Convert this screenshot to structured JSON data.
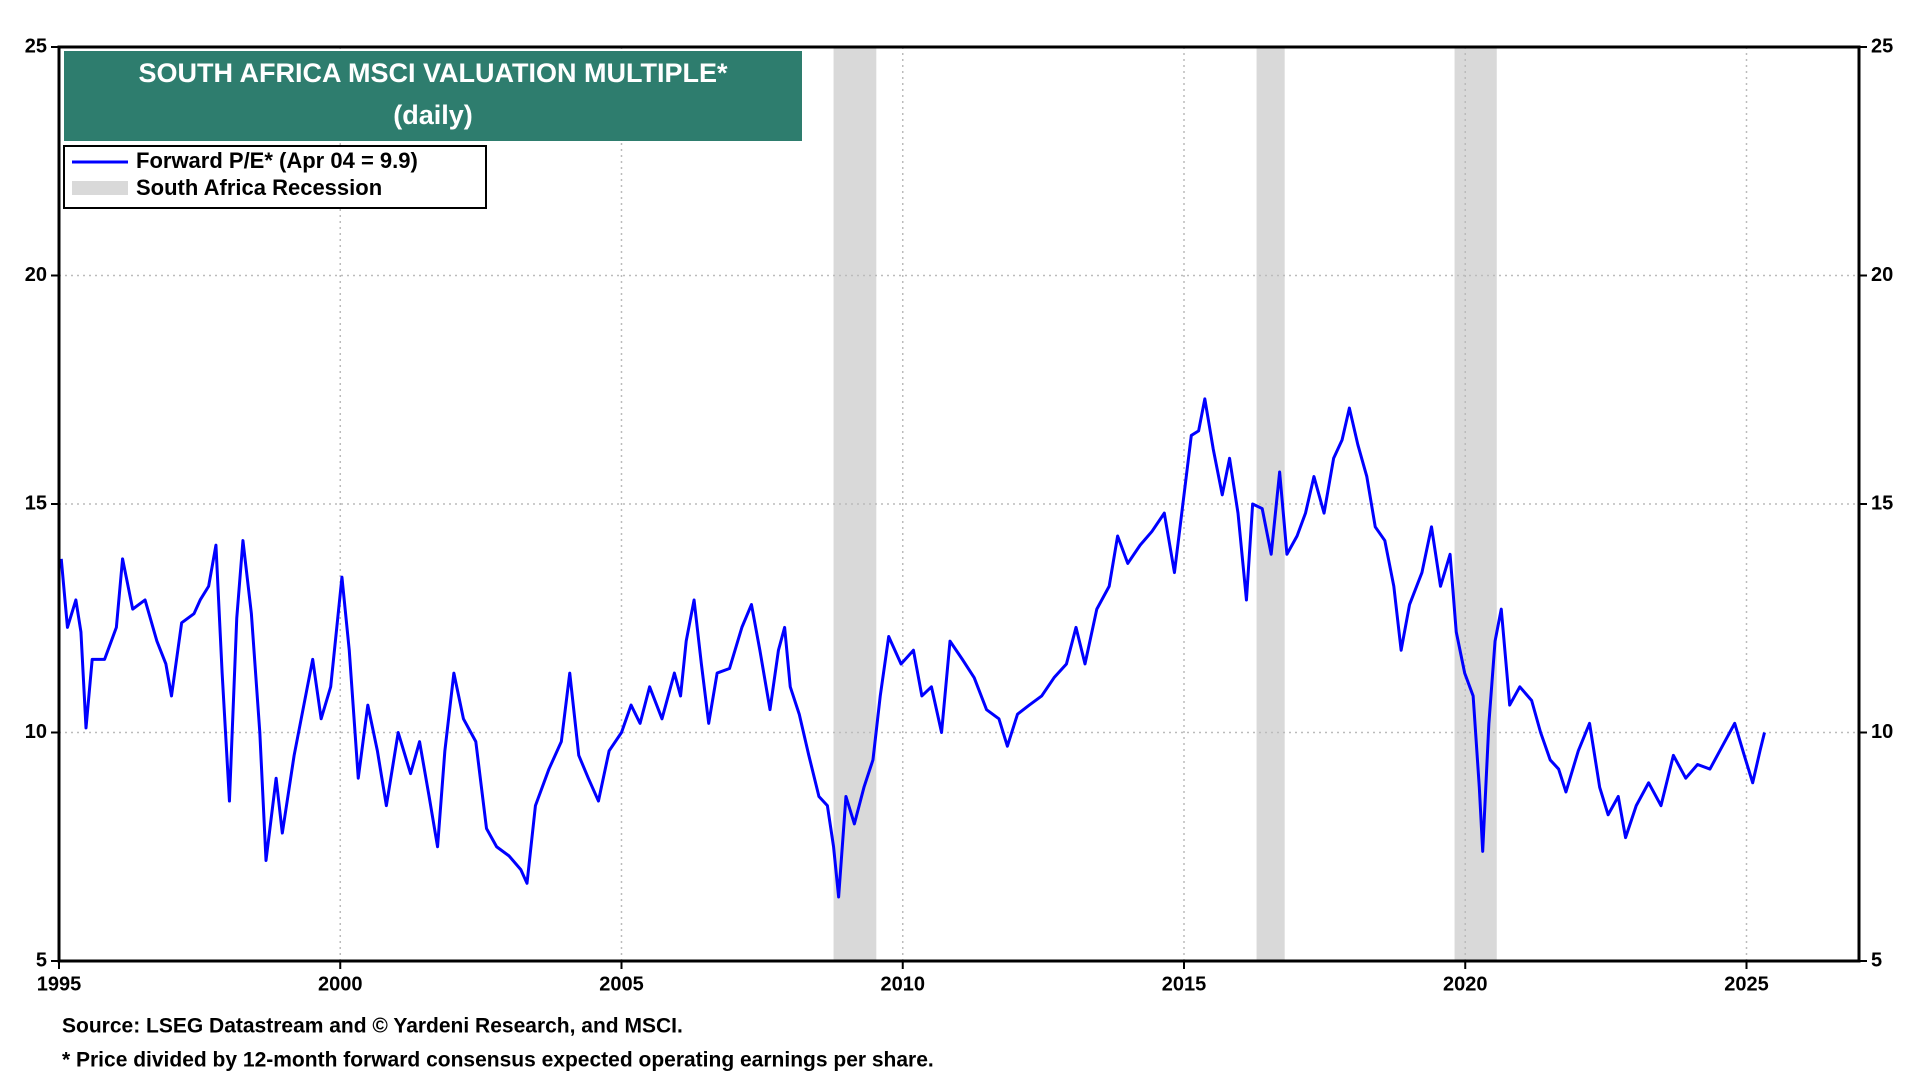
{
  "chart_data": {
    "type": "line",
    "title": "SOUTH AFRICA MSCI VALUATION MULTIPLE*",
    "subtitle": "(daily)",
    "source": "Source: LSEG Datastream and © Yardeni Research, and MSCI.",
    "note": "* Price divided by 12-month forward consensus expected operating earnings per share.",
    "x": [
      1995.04,
      1995.15,
      1995.3,
      1995.39,
      1995.48,
      1995.59,
      1995.81,
      1996.02,
      1996.13,
      1996.31,
      1996.53,
      1996.74,
      1996.9,
      1997.0,
      1997.18,
      1997.4,
      1997.51,
      1997.66,
      1997.79,
      1997.9,
      1998.03,
      1998.16,
      1998.27,
      1998.42,
      1998.57,
      1998.68,
      1998.86,
      1998.97,
      1999.18,
      1999.4,
      1999.51,
      1999.66,
      1999.83,
      2000.03,
      2000.16,
      2000.32,
      2000.49,
      2000.66,
      2000.82,
      2001.03,
      2001.25,
      2001.41,
      2001.58,
      2001.73,
      2001.86,
      2002.02,
      2002.19,
      2002.41,
      2002.6,
      2002.78,
      2003.0,
      2003.21,
      2003.32,
      2003.47,
      2003.71,
      2003.93,
      2004.08,
      2004.24,
      2004.41,
      2004.59,
      2004.78,
      2005.0,
      2005.17,
      2005.33,
      2005.5,
      2005.72,
      2005.94,
      2006.05,
      2006.15,
      2006.29,
      2006.42,
      2006.55,
      2006.7,
      2006.92,
      2007.14,
      2007.31,
      2007.46,
      2007.64,
      2007.79,
      2007.9,
      2008.0,
      2008.16,
      2008.33,
      2008.51,
      2008.66,
      2008.77,
      2008.86,
      2008.99,
      2009.14,
      2009.31,
      2009.47,
      2009.6,
      2009.75,
      2009.97,
      2010.19,
      2010.34,
      2010.51,
      2010.69,
      2010.84,
      2011.06,
      2011.27,
      2011.49,
      2011.71,
      2011.86,
      2012.04,
      2012.25,
      2012.47,
      2012.69,
      2012.91,
      2013.08,
      2013.24,
      2013.45,
      2013.67,
      2013.82,
      2014.0,
      2014.22,
      2014.43,
      2014.65,
      2014.83,
      2014.98,
      2015.13,
      2015.26,
      2015.37,
      2015.52,
      2015.68,
      2015.81,
      2015.96,
      2016.11,
      2016.22,
      2016.39,
      2016.55,
      2016.7,
      2016.83,
      2017.01,
      2017.16,
      2017.31,
      2017.49,
      2017.66,
      2017.81,
      2017.94,
      2018.09,
      2018.25,
      2018.4,
      2018.57,
      2018.73,
      2018.86,
      2019.01,
      2019.23,
      2019.4,
      2019.56,
      2019.73,
      2019.84,
      2019.99,
      2020.14,
      2020.25,
      2020.31,
      2020.42,
      2020.53,
      2020.64,
      2020.79,
      2020.97,
      2021.18,
      2021.34,
      2021.51,
      2021.66,
      2021.79,
      2022.01,
      2022.21,
      2022.39,
      2022.54,
      2022.72,
      2022.85,
      2023.04,
      2023.26,
      2023.48,
      2023.7,
      2023.92,
      2024.13,
      2024.35,
      2024.57,
      2024.79,
      2024.96,
      2025.11,
      2025.24,
      2025.32
    ],
    "series": [
      {
        "name": "Forward P/E* (Apr 04 = 9.9)",
        "color": "#0000ff",
        "values": [
          13.8,
          12.3,
          12.9,
          12.2,
          10.1,
          11.6,
          11.6,
          12.3,
          13.8,
          12.7,
          12.9,
          12.0,
          11.5,
          10.8,
          12.4,
          12.6,
          12.9,
          13.2,
          14.1,
          11.3,
          8.5,
          12.5,
          14.2,
          12.6,
          10.0,
          7.2,
          9.0,
          7.8,
          9.5,
          10.9,
          11.6,
          10.3,
          11.0,
          13.4,
          11.8,
          9.0,
          10.6,
          9.6,
          8.4,
          10.0,
          9.1,
          9.8,
          8.6,
          7.5,
          9.6,
          11.3,
          10.3,
          9.8,
          7.9,
          7.5,
          7.3,
          7.0,
          6.7,
          8.4,
          9.2,
          9.8,
          11.3,
          9.5,
          9.0,
          8.5,
          9.6,
          10.0,
          10.6,
          10.2,
          11.0,
          10.3,
          11.3,
          10.8,
          12.0,
          12.9,
          11.5,
          10.2,
          11.3,
          11.4,
          12.3,
          12.8,
          11.8,
          10.5,
          11.8,
          12.3,
          11.0,
          10.4,
          9.5,
          8.6,
          8.4,
          7.5,
          6.4,
          8.6,
          8.0,
          8.8,
          9.4,
          10.8,
          12.1,
          11.5,
          11.8,
          10.8,
          11.0,
          10.0,
          12.0,
          11.6,
          11.2,
          10.5,
          10.3,
          9.7,
          10.4,
          10.6,
          10.8,
          11.2,
          11.5,
          12.3,
          11.5,
          12.7,
          13.2,
          14.3,
          13.7,
          14.1,
          14.4,
          14.8,
          13.5,
          15.0,
          16.5,
          16.6,
          17.3,
          16.2,
          15.2,
          16.0,
          14.8,
          12.9,
          15.0,
          14.9,
          13.9,
          15.7,
          13.9,
          14.3,
          14.8,
          15.6,
          14.8,
          16.0,
          16.4,
          17.1,
          16.3,
          15.6,
          14.5,
          14.2,
          13.2,
          11.8,
          12.8,
          13.5,
          14.5,
          13.2,
          13.9,
          12.2,
          11.3,
          10.8,
          8.8,
          7.4,
          10.2,
          12.0,
          12.7,
          10.6,
          11.0,
          10.7,
          10.0,
          9.4,
          9.2,
          8.7,
          9.6,
          10.2,
          8.8,
          8.2,
          8.6,
          7.7,
          8.4,
          8.9,
          8.4,
          9.5,
          9.0,
          9.3,
          9.2,
          9.7,
          10.2,
          9.5,
          8.9,
          9.6,
          10.0
        ]
      }
    ],
    "shaded_regions": {
      "name": "South Africa Recession",
      "color": "#d9d9d9",
      "ranges": [
        [
          2008.77,
          2009.53
        ],
        [
          2016.29,
          2016.79
        ],
        [
          2019.81,
          2020.56
        ]
      ]
    },
    "xlim": [
      1995,
      2027
    ],
    "xticks": [
      1995,
      2000,
      2005,
      2010,
      2015,
      2020,
      2025
    ],
    "ylim": [
      5,
      25
    ],
    "yticks": [
      5,
      10,
      15,
      20,
      25
    ],
    "y2lim": [
      5,
      25
    ],
    "y2ticks": [
      5,
      10,
      15,
      20,
      25
    ],
    "title_color": "#2e7d6e",
    "grid": true
  }
}
